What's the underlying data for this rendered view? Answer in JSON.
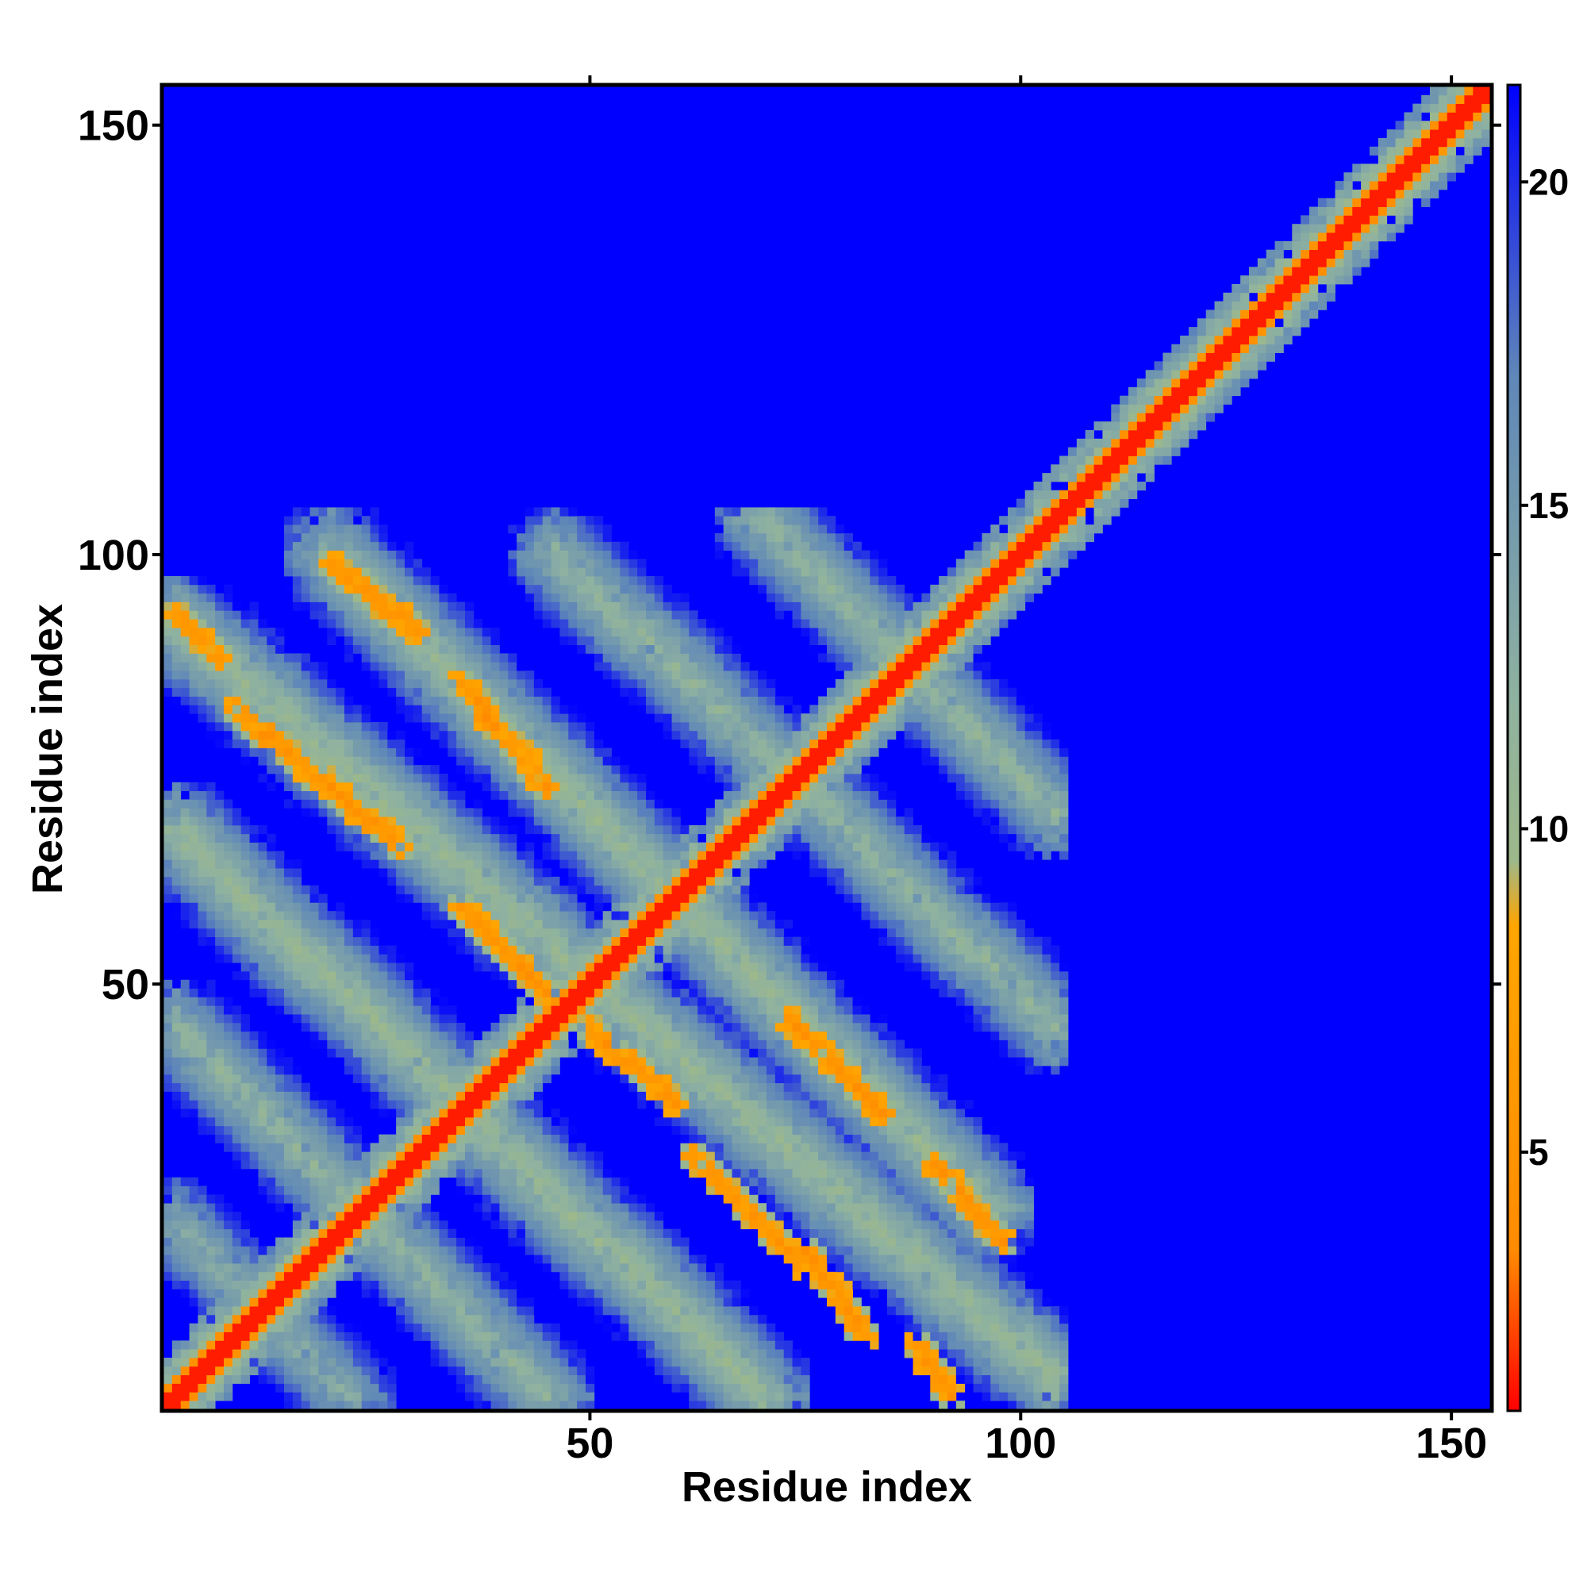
{
  "chart_data": {
    "type": "heatmap",
    "title": "",
    "xlabel": "Residue index",
    "ylabel": "Residue index",
    "x_range": [
      1,
      154
    ],
    "y_range": [
      1,
      154
    ],
    "xticks": [
      50,
      100,
      150
    ],
    "yticks": [
      50,
      100,
      150
    ],
    "colorbar": {
      "range": [
        1,
        21.5
      ],
      "ticks": [
        5,
        10,
        15,
        20
      ],
      "colors": [
        "#ff0000",
        "#ff8c00",
        "#ffa500",
        "#9db88a",
        "#8fb2a0",
        "#5f87b8",
        "#0000ff"
      ],
      "stops": [
        1,
        3.5,
        8.5,
        9.5,
        12,
        17,
        21.5
      ]
    },
    "background_value": 21.5,
    "main_diagonal": {
      "from": 1,
      "to": 154,
      "value": 1.5
    },
    "region_extent": {
      "x_max": 105,
      "y_max": 105
    },
    "features": [
      {
        "kind": "anti-diagonal",
        "x_from": 20,
        "y_from": 99,
        "x_to": 30,
        "y_to": 91,
        "value": 5
      },
      {
        "kind": "anti-diagonal",
        "x_from": 2,
        "y_from": 93,
        "x_to": 7,
        "y_to": 88,
        "value": 5
      },
      {
        "kind": "anti-diagonal",
        "x_from": 9,
        "y_from": 82,
        "x_to": 28,
        "y_to": 66,
        "value": 5
      },
      {
        "kind": "anti-diagonal",
        "x_from": 35,
        "y_from": 85,
        "x_to": 45,
        "y_to": 73,
        "value": 5
      },
      {
        "kind": "anti-diagonal",
        "x_from": 35,
        "y_from": 59,
        "x_to": 45,
        "y_to": 49,
        "value": 5
      },
      {
        "kind": "anti-diagonal",
        "x_from": 50,
        "y_from": 45,
        "x_to": 60,
        "y_to": 36,
        "value": 5
      },
      {
        "kind": "anti-diagonal",
        "x_from": 62,
        "y_from": 30,
        "x_to": 75,
        "y_to": 17,
        "value": 5
      },
      {
        "kind": "anti-diagonal",
        "x_from": 75,
        "y_from": 19,
        "x_to": 82,
        "y_to": 9,
        "value": 5
      },
      {
        "kind": "anti-diagonal",
        "x_from": 73,
        "y_from": 46,
        "x_to": 84,
        "y_to": 35,
        "value": 5
      },
      {
        "kind": "anti-diagonal",
        "x_from": 90,
        "y_from": 29,
        "x_to": 98,
        "y_to": 20,
        "value": 5
      },
      {
        "kind": "anti-diagonal",
        "x_from": 88,
        "y_from": 8,
        "x_to": 92,
        "y_to": 2,
        "value": 5
      },
      {
        "kind": "anti-diagonal",
        "x_from": 2,
        "y_from": 92,
        "x_to": 104,
        "y_to": 4,
        "value": 11
      },
      {
        "kind": "anti-diagonal",
        "x_from": 2,
        "y_from": 68,
        "x_to": 70,
        "y_to": 2,
        "value": 11
      },
      {
        "kind": "anti-diagonal",
        "x_from": 20,
        "y_from": 100,
        "x_to": 96,
        "y_to": 24,
        "value": 11
      },
      {
        "kind": "anti-diagonal",
        "x_from": 2,
        "y_from": 45,
        "x_to": 45,
        "y_to": 2,
        "value": 12
      },
      {
        "kind": "anti-diagonal",
        "x_from": 46,
        "y_from": 100,
        "x_to": 104,
        "y_to": 45,
        "value": 12
      },
      {
        "kind": "anti-diagonal",
        "x_from": 70,
        "y_from": 104,
        "x_to": 104,
        "y_to": 70,
        "value": 12
      },
      {
        "kind": "anti-diagonal",
        "x_from": 2,
        "y_from": 22,
        "x_to": 22,
        "y_to": 2,
        "value": 13
      }
    ]
  }
}
